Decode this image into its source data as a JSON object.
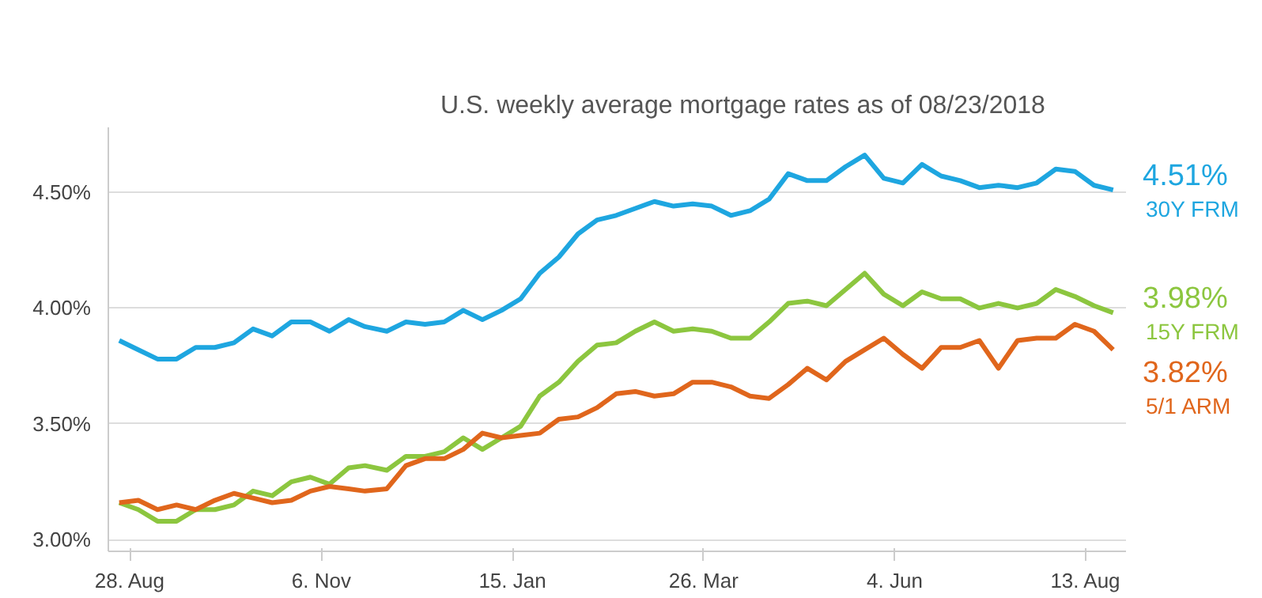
{
  "chart_data": {
    "type": "line",
    "subtitle": "U.S. weekly average mortgage rates as of 08/23/2018",
    "x": [
      "2017-08-24",
      "2017-08-31",
      "2017-09-07",
      "2017-09-14",
      "2017-09-21",
      "2017-09-28",
      "2017-10-05",
      "2017-10-12",
      "2017-10-19",
      "2017-10-26",
      "2017-11-02",
      "2017-11-09",
      "2017-11-16",
      "2017-11-22",
      "2017-11-30",
      "2017-12-07",
      "2017-12-14",
      "2017-12-21",
      "2017-12-28",
      "2018-01-04",
      "2018-01-11",
      "2018-01-18",
      "2018-01-25",
      "2018-02-01",
      "2018-02-08",
      "2018-02-15",
      "2018-02-22",
      "2018-03-01",
      "2018-03-08",
      "2018-03-15",
      "2018-03-22",
      "2018-03-29",
      "2018-04-05",
      "2018-04-12",
      "2018-04-19",
      "2018-04-26",
      "2018-05-03",
      "2018-05-10",
      "2018-05-17",
      "2018-05-24",
      "2018-05-31",
      "2018-06-07",
      "2018-06-14",
      "2018-06-21",
      "2018-06-28",
      "2018-07-05",
      "2018-07-12",
      "2018-07-19",
      "2018-07-26",
      "2018-08-02",
      "2018-08-09",
      "2018-08-16",
      "2018-08-23"
    ],
    "series": [
      {
        "name": "30Y FRM",
        "color": "#1ea6e0",
        "values": [
          3.86,
          3.82,
          3.78,
          3.78,
          3.83,
          3.83,
          3.85,
          3.91,
          3.88,
          3.94,
          3.94,
          3.9,
          3.95,
          3.92,
          3.9,
          3.94,
          3.93,
          3.94,
          3.99,
          3.95,
          3.99,
          4.04,
          4.15,
          4.22,
          4.32,
          4.38,
          4.4,
          4.43,
          4.46,
          4.44,
          4.45,
          4.44,
          4.4,
          4.42,
          4.47,
          4.58,
          4.55,
          4.55,
          4.61,
          4.66,
          4.56,
          4.54,
          4.62,
          4.57,
          4.55,
          4.52,
          4.53,
          4.52,
          4.54,
          4.6,
          4.59,
          4.53,
          4.51
        ],
        "value_labels": [
          null,
          null,
          null,
          null,
          null,
          null,
          null,
          null,
          null,
          null,
          null,
          null,
          null,
          null,
          null,
          null,
          null,
          null,
          null,
          null,
          null,
          null,
          null,
          null,
          null,
          null,
          null,
          null,
          null,
          null,
          null,
          null,
          null,
          null,
          null,
          null,
          null,
          null,
          null,
          null,
          null,
          null,
          null,
          null,
          null,
          null,
          null,
          null,
          null,
          null,
          null,
          null,
          "4.51%"
        ]
      },
      {
        "name": "15Y FRM",
        "color": "#8cc63f",
        "values": [
          3.16,
          3.13,
          3.08,
          3.08,
          3.13,
          3.13,
          3.15,
          3.21,
          3.19,
          3.25,
          3.27,
          3.24,
          3.31,
          3.32,
          3.3,
          3.36,
          3.36,
          3.38,
          3.44,
          3.39,
          3.44,
          3.49,
          3.62,
          3.68,
          3.77,
          3.84,
          3.85,
          3.9,
          3.94,
          3.9,
          3.91,
          3.9,
          3.87,
          3.87,
          3.94,
          4.02,
          4.03,
          4.01,
          4.08,
          4.15,
          4.06,
          4.01,
          4.07,
          4.04,
          4.04,
          4.0,
          4.02,
          4.0,
          4.02,
          4.08,
          4.05,
          4.01,
          3.98
        ],
        "value_labels": [
          null,
          null,
          null,
          null,
          null,
          null,
          null,
          null,
          null,
          null,
          null,
          null,
          null,
          null,
          null,
          null,
          null,
          null,
          null,
          null,
          null,
          null,
          null,
          null,
          null,
          null,
          null,
          null,
          null,
          null,
          null,
          null,
          null,
          null,
          null,
          null,
          null,
          null,
          null,
          null,
          null,
          null,
          null,
          null,
          null,
          null,
          null,
          null,
          null,
          null,
          null,
          null,
          "3.98%"
        ]
      },
      {
        "name": "5/1 ARM",
        "color": "#e0661c",
        "values": [
          3.16,
          3.17,
          3.13,
          3.15,
          3.13,
          3.17,
          3.2,
          3.18,
          3.16,
          3.17,
          3.21,
          3.23,
          3.22,
          3.21,
          3.22,
          3.32,
          3.35,
          3.35,
          3.39,
          3.46,
          3.44,
          3.45,
          3.46,
          3.52,
          3.53,
          3.57,
          3.63,
          3.64,
          3.62,
          3.63,
          3.68,
          3.68,
          3.66,
          3.62,
          3.61,
          3.67,
          3.74,
          3.69,
          3.77,
          3.82,
          3.87,
          3.8,
          3.74,
          3.83,
          3.83,
          3.86,
          3.74,
          3.86,
          3.87,
          3.87,
          3.93,
          3.9,
          3.82
        ],
        "value_labels": [
          null,
          null,
          null,
          null,
          null,
          null,
          null,
          null,
          null,
          null,
          null,
          null,
          null,
          null,
          null,
          null,
          null,
          null,
          null,
          null,
          null,
          null,
          null,
          null,
          null,
          null,
          null,
          null,
          null,
          null,
          null,
          null,
          null,
          null,
          null,
          null,
          null,
          null,
          null,
          null,
          null,
          null,
          null,
          null,
          null,
          null,
          null,
          null,
          null,
          null,
          null,
          null,
          "3.82%"
        ]
      }
    ],
    "xlim": [
      "2017-08-20",
      "2018-08-28"
    ],
    "xticks": [
      {
        "value": "2017-08-28",
        "label": "28. Aug"
      },
      {
        "value": "2017-11-06",
        "label": "6. Nov"
      },
      {
        "value": "2018-01-15",
        "label": "15. Jan"
      },
      {
        "value": "2018-03-26",
        "label": "26. Mar"
      },
      {
        "value": "2018-06-04",
        "label": "4. Jun"
      },
      {
        "value": "2018-08-13",
        "label": "13. Aug"
      }
    ],
    "ylim": [
      2.95,
      4.78
    ],
    "yticks": [
      {
        "value": 3.0,
        "label": "3.00%"
      },
      {
        "value": 3.5,
        "label": "3.50%"
      },
      {
        "value": 4.0,
        "label": "4.00%"
      },
      {
        "value": 4.5,
        "label": "4.50%"
      }
    ],
    "grid": "y",
    "line_style": "solid",
    "marker": "none"
  }
}
